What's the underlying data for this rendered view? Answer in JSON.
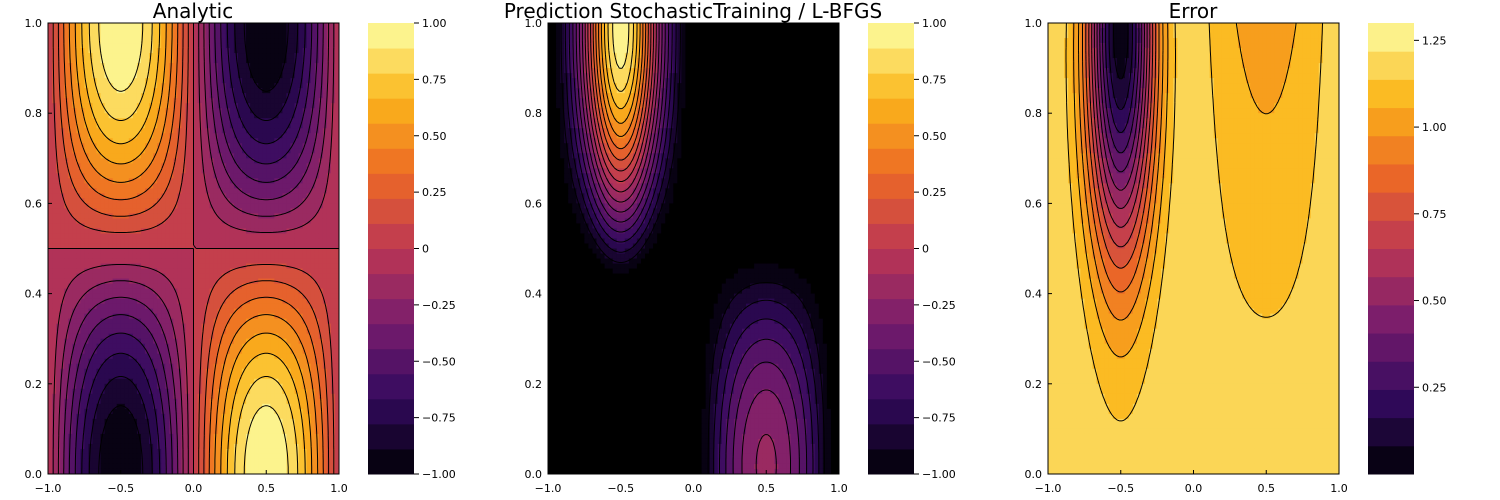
{
  "chart_data": [
    {
      "type": "contour",
      "title": "Analytic",
      "x_ticks": [
        "−1.0",
        "−0.5",
        "0.0",
        "0.5",
        "1.0"
      ],
      "y_ticks": [
        "0.0",
        "0.2",
        "0.4",
        "0.6",
        "0.8",
        "1.0"
      ],
      "xlim": [
        -1,
        1
      ],
      "ylim": [
        0,
        1
      ],
      "field": "u(x,t) = sin(pi*x) * cos(pi*t)",
      "color_range": [
        -1,
        1
      ],
      "levels": 18,
      "colorbar_ticks": [
        "−1.00",
        "−0.75",
        "−0.50",
        "−0.25",
        "0",
        "0.25",
        "0.50",
        "0.75",
        "1.00"
      ],
      "colorbar_tick_values": [
        -1,
        -0.75,
        -0.5,
        -0.25,
        0,
        0.25,
        0.5,
        0.75,
        1
      ]
    },
    {
      "type": "contour",
      "title": "Prediction StochasticTraining / L-BFGS",
      "x_ticks": [
        "−1.0",
        "−0.5",
        "0.0",
        "0.5",
        "1.0"
      ],
      "y_ticks": [
        "0.0",
        "0.2",
        "0.4",
        "0.6",
        "0.8",
        "1.0"
      ],
      "xlim": [
        -1,
        1
      ],
      "ylim": [
        0,
        1
      ],
      "color_range": [
        -1,
        1
      ],
      "levels": 18,
      "colorbar_ticks": [
        "−1.00",
        "−0.75",
        "−0.50",
        "−0.25",
        "0",
        "0.25",
        "0.50",
        "0.75",
        "1.00"
      ],
      "colorbar_tick_values": [
        -1,
        -0.75,
        -0.5,
        -0.25,
        0,
        0.25,
        0.5,
        0.75,
        1
      ]
    },
    {
      "type": "contour",
      "title": "Error",
      "x_ticks": [
        "−1.0",
        "−0.5",
        "0.0",
        "0.5",
        "1.0"
      ],
      "y_ticks": [
        "0.0",
        "0.2",
        "0.4",
        "0.6",
        "0.8",
        "1.0"
      ],
      "xlim": [
        -1,
        1
      ],
      "ylim": [
        0,
        1
      ],
      "color_range": [
        0,
        1.3
      ],
      "levels": 16,
      "colorbar_ticks": [
        "0.25",
        "0.50",
        "0.75",
        "1.00",
        "1.25"
      ],
      "colorbar_tick_values": [
        0.25,
        0.5,
        0.75,
        1.0,
        1.25
      ]
    }
  ],
  "colormap": [
    "#000004",
    "#320a5e",
    "#781c6d",
    "#bc3754",
    "#ed6925",
    "#fbb61a",
    "#fcffa4"
  ]
}
